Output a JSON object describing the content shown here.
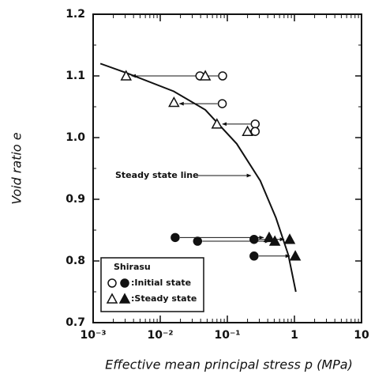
{
  "chart_data": {
    "type": "scatter",
    "x_label": "Effective mean principal stress p (MPa)",
    "y_label": "Void ratio e",
    "xlim": [
      0.001,
      10
    ],
    "log_x": true,
    "xticks": [
      {
        "value": 0.001,
        "label": "10⁻³"
      },
      {
        "value": 0.01,
        "label": "10⁻²"
      },
      {
        "value": 0.1,
        "label": "10⁻¹"
      },
      1,
      10
    ],
    "ylim": [
      0.7,
      1.2
    ],
    "yticks": [
      0.7,
      0.8,
      0.9,
      {
        "value": 1.0,
        "label": "1.0"
      },
      1.1,
      1.2
    ],
    "legend": {
      "title": "Shirasu",
      "position": "lower left"
    },
    "series": [
      {
        "name": ":Initial state",
        "marker": "circle",
        "open": {
          "x": [
            0.085,
            0.084,
            0.26,
            0.26,
            0.039
          ],
          "values": [
            1.1,
            1.055,
            1.022,
            1.01,
            1.1
          ]
        },
        "filled": {
          "x": [
            0.0167,
            0.036,
            0.25,
            0.25
          ],
          "values": [
            0.838,
            0.832,
            0.835,
            0.808
          ]
        }
      },
      {
        "name": ":Steady state",
        "marker": "triangle",
        "open": {
          "x": [
            0.0031,
            0.016,
            0.07,
            0.2,
            0.047
          ],
          "values": [
            1.1,
            1.057,
            1.022,
            1.01,
            1.1
          ]
        },
        "filled": {
          "x": [
            0.42,
            0.51,
            0.85,
            1.03
          ],
          "values": [
            0.838,
            0.832,
            0.835,
            0.808
          ]
        }
      }
    ],
    "curve": {
      "name": "Steady state line",
      "x": [
        0.00128,
        0.0031,
        0.0159,
        0.047,
        0.138,
        0.31,
        0.53,
        0.81,
        1.05
      ],
      "values": [
        1.12,
        1.105,
        1.075,
        1.045,
        0.99,
        0.93,
        0.87,
        0.81,
        0.75
      ]
    }
  }
}
